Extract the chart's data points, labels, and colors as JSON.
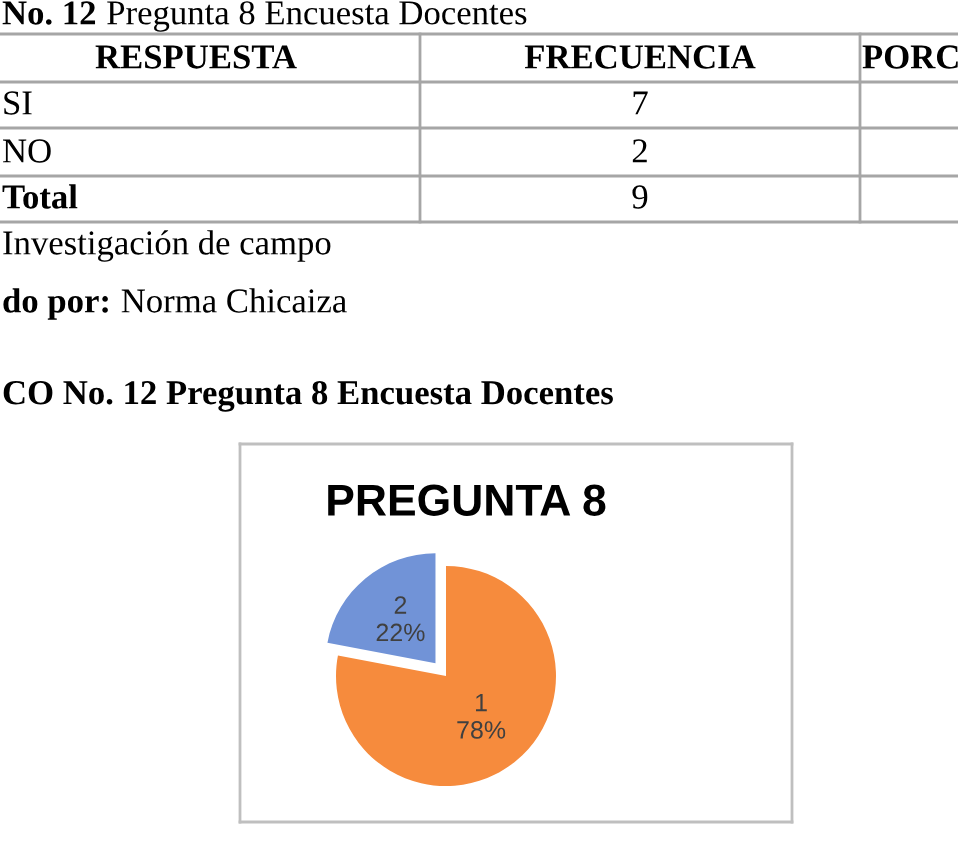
{
  "chart_data": [
    {
      "type": "other",
      "annotations": [
        "No. 12",
        "Pregunta 8 Encuesta Docentes",
        "RESPUESTA",
        "FRECUENCIA",
        "PORC",
        "SI",
        "7",
        "NO",
        "2",
        "Total",
        "9",
        "Investigación de campo",
        "do por:",
        "Norma Chicaiza"
      ]
    },
    {
      "type": "pie",
      "title": "PREGUNTA 8",
      "categories": [
        "1",
        "2"
      ],
      "values": [
        78,
        22
      ],
      "value_labels": [
        "78%",
        "22%"
      ],
      "colors": [
        "#F68B3D",
        "#7193D7"
      ],
      "annotations": [
        "CO No. 12 Pregunta 8 Encuesta Docentes"
      ]
    }
  ]
}
